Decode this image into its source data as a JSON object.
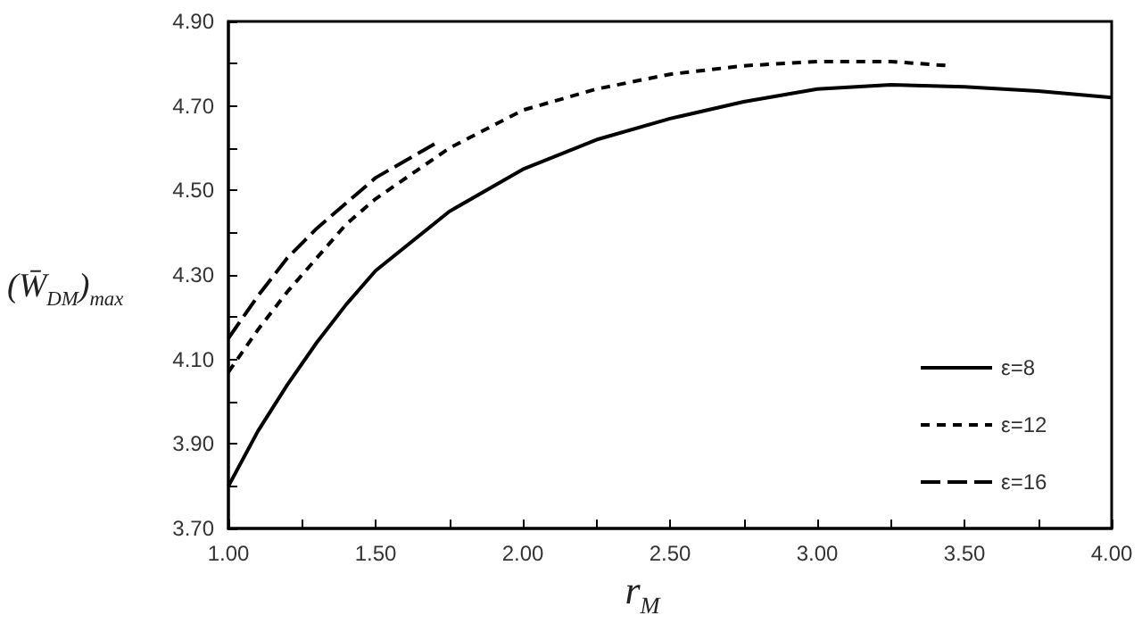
{
  "chart_data": {
    "type": "line",
    "xlabel": "r$_{M}$",
    "ylabel": "(W̄$_{DM}$)$_{max}$",
    "xlim": [
      1.0,
      4.0
    ],
    "xticks": [
      {
        "value": 1.0,
        "label": "1.00"
      },
      {
        "value": 1.25,
        "label": null
      },
      {
        "value": 1.5,
        "label": "1.50"
      },
      {
        "value": 1.75,
        "label": null
      },
      {
        "value": 2.0,
        "label": "2.00"
      },
      {
        "value": 2.25,
        "label": null
      },
      {
        "value": 2.5,
        "label": "2.50"
      },
      {
        "value": 2.75,
        "label": null
      },
      {
        "value": 3.0,
        "label": "3.00"
      },
      {
        "value": 3.25,
        "label": null
      },
      {
        "value": 3.5,
        "label": "3.50"
      },
      {
        "value": 3.75,
        "label": null
      },
      {
        "value": 4.0,
        "label": "4.00"
      }
    ],
    "ylim": [
      3.7,
      4.9
    ],
    "yticks": [
      {
        "value": 3.7,
        "label": "3.70"
      },
      {
        "value": 3.8,
        "label": null
      },
      {
        "value": 3.9,
        "label": "3.90"
      },
      {
        "value": 4.0,
        "label": null
      },
      {
        "value": 4.1,
        "label": "4.10"
      },
      {
        "value": 4.2,
        "label": null
      },
      {
        "value": 4.3,
        "label": "4.30"
      },
      {
        "value": 4.4,
        "label": null
      },
      {
        "value": 4.5,
        "label": "4.50"
      },
      {
        "value": 4.6,
        "label": null
      },
      {
        "value": 4.7,
        "label": "4.70"
      },
      {
        "value": 4.8,
        "label": null
      },
      {
        "value": 4.9,
        "label": "4.90"
      }
    ],
    "grid": false,
    "legend": "bottom right",
    "marker": "none",
    "series": [
      {
        "name": "ε=8",
        "color": "#000000",
        "line_style": "solid",
        "x": [
          1.0,
          1.1,
          1.2,
          1.3,
          1.4,
          1.5,
          1.75,
          2.0,
          2.25,
          2.5,
          2.75,
          3.0,
          3.25,
          3.5,
          3.75,
          4.0
        ],
        "values": [
          3.8,
          3.93,
          4.04,
          4.14,
          4.23,
          4.31,
          4.45,
          4.55,
          4.62,
          4.67,
          4.71,
          4.74,
          4.75,
          4.745,
          4.735,
          4.72
        ]
      },
      {
        "name": "ε=12",
        "color": "#000000",
        "line_style": "dashed",
        "x": [
          1.0,
          1.1,
          1.2,
          1.3,
          1.4,
          1.5,
          1.75,
          2.0,
          2.25,
          2.5,
          2.75,
          3.0,
          3.25,
          3.45
        ],
        "values": [
          4.07,
          4.17,
          4.26,
          4.34,
          4.42,
          4.48,
          4.6,
          4.69,
          4.74,
          4.775,
          4.795,
          4.805,
          4.805,
          4.795
        ]
      },
      {
        "name": "ε=16",
        "color": "#000000",
        "line_style": "longdash",
        "x": [
          1.0,
          1.1,
          1.2,
          1.3,
          1.4,
          1.5,
          1.6,
          1.7
        ],
        "values": [
          4.15,
          4.25,
          4.34,
          4.41,
          4.47,
          4.53,
          4.57,
          4.61
        ]
      }
    ]
  }
}
